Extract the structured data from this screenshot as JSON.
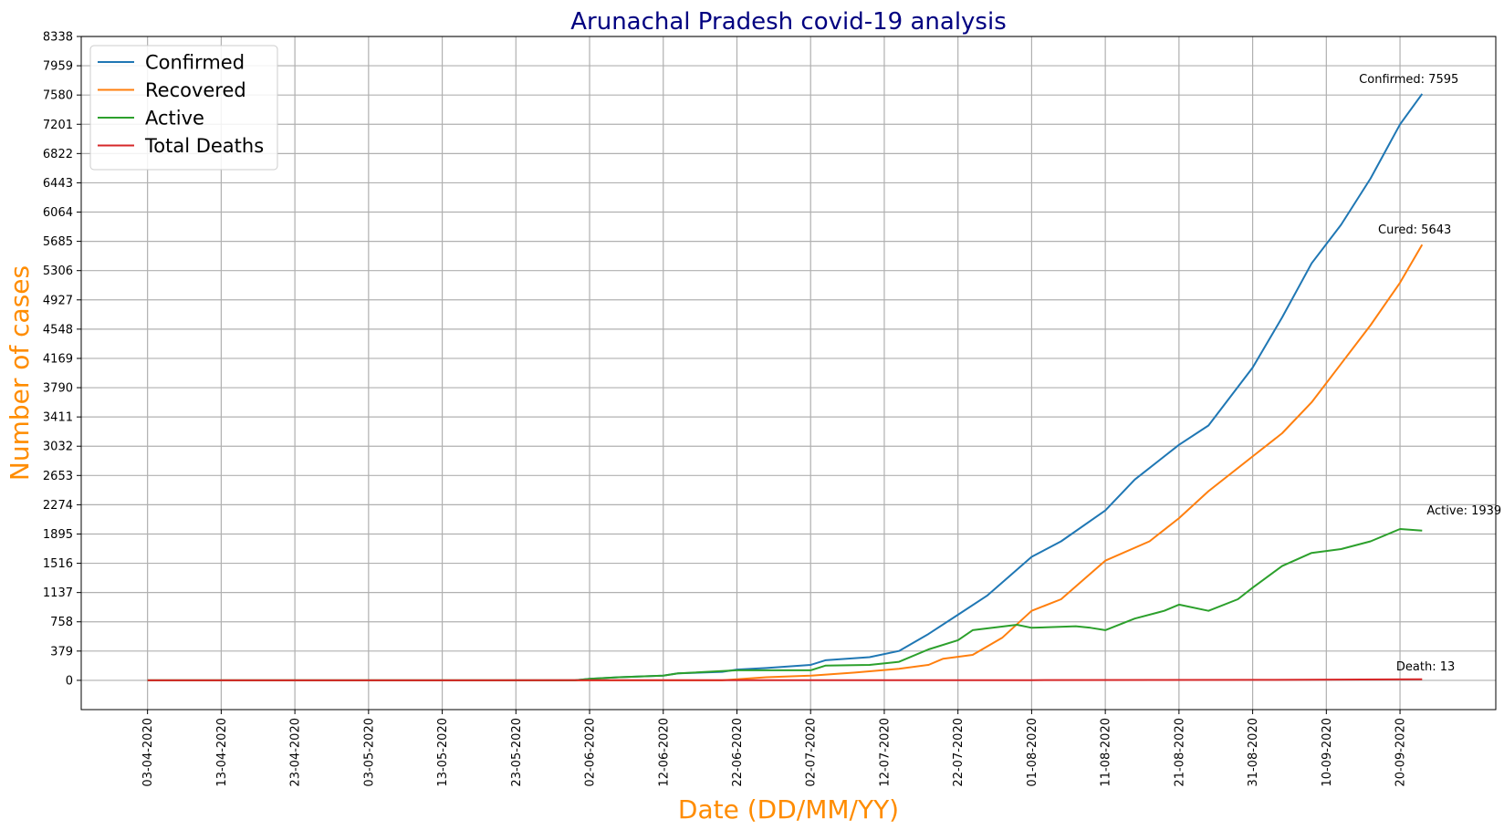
{
  "chart_data": {
    "type": "line",
    "title": "Arunachal Pradesh covid-19 analysis",
    "xlabel": "Date (DD/MM/YY)",
    "ylabel": "Number of cases",
    "x_start": "03-04-2020",
    "x_end": "23-09-2020",
    "xlim": [
      "25-03-2020",
      "03-10-2020"
    ],
    "ylim": [
      -379,
      8338
    ],
    "x_ticks": [
      "03-04-2020",
      "13-04-2020",
      "23-04-2020",
      "03-05-2020",
      "13-05-2020",
      "23-05-2020",
      "02-06-2020",
      "12-06-2020",
      "22-06-2020",
      "02-07-2020",
      "12-07-2020",
      "22-07-2020",
      "01-08-2020",
      "11-08-2020",
      "21-08-2020",
      "31-08-2020",
      "10-09-2020",
      "20-09-2020"
    ],
    "y_ticks": [
      0,
      379,
      758,
      1137,
      1516,
      1895,
      2274,
      2653,
      3032,
      3411,
      3790,
      4169,
      4548,
      4927,
      5306,
      5685,
      6064,
      6443,
      6822,
      7201,
      7580,
      7959,
      8338
    ],
    "grid": true,
    "legend": {
      "position": "top-left"
    },
    "series": [
      {
        "name": "Confirmed",
        "color": "#1f77b4",
        "points": [
          [
            "03-04-2020",
            0
          ],
          [
            "31-05-2020",
            0
          ],
          [
            "02-06-2020",
            20
          ],
          [
            "06-06-2020",
            40
          ],
          [
            "12-06-2020",
            60
          ],
          [
            "14-06-2020",
            90
          ],
          [
            "20-06-2020",
            110
          ],
          [
            "22-06-2020",
            140
          ],
          [
            "26-06-2020",
            160
          ],
          [
            "02-07-2020",
            200
          ],
          [
            "04-07-2020",
            260
          ],
          [
            "10-07-2020",
            300
          ],
          [
            "14-07-2020",
            380
          ],
          [
            "18-07-2020",
            600
          ],
          [
            "22-07-2020",
            850
          ],
          [
            "26-07-2020",
            1100
          ],
          [
            "01-08-2020",
            1600
          ],
          [
            "05-08-2020",
            1800
          ],
          [
            "11-08-2020",
            2200
          ],
          [
            "15-08-2020",
            2600
          ],
          [
            "21-08-2020",
            3050
          ],
          [
            "25-08-2020",
            3300
          ],
          [
            "31-08-2020",
            4050
          ],
          [
            "04-09-2020",
            4700
          ],
          [
            "08-09-2020",
            5400
          ],
          [
            "12-09-2020",
            5900
          ],
          [
            "16-09-2020",
            6500
          ],
          [
            "20-09-2020",
            7200
          ],
          [
            "23-09-2020",
            7595
          ]
        ]
      },
      {
        "name": "Recovered",
        "color": "#ff7f0e",
        "points": [
          [
            "03-04-2020",
            0
          ],
          [
            "20-06-2020",
            0
          ],
          [
            "26-06-2020",
            40
          ],
          [
            "02-07-2020",
            60
          ],
          [
            "08-07-2020",
            100
          ],
          [
            "14-07-2020",
            150
          ],
          [
            "18-07-2020",
            200
          ],
          [
            "20-07-2020",
            280
          ],
          [
            "24-07-2020",
            330
          ],
          [
            "28-07-2020",
            550
          ],
          [
            "01-08-2020",
            900
          ],
          [
            "05-08-2020",
            1050
          ],
          [
            "11-08-2020",
            1550
          ],
          [
            "17-08-2020",
            1800
          ],
          [
            "21-08-2020",
            2100
          ],
          [
            "25-08-2020",
            2450
          ],
          [
            "31-08-2020",
            2900
          ],
          [
            "04-09-2020",
            3200
          ],
          [
            "08-09-2020",
            3600
          ],
          [
            "12-09-2020",
            4100
          ],
          [
            "16-09-2020",
            4600
          ],
          [
            "20-09-2020",
            5150
          ],
          [
            "23-09-2020",
            5643
          ]
        ]
      },
      {
        "name": "Active",
        "color": "#2ca02c",
        "points": [
          [
            "03-04-2020",
            0
          ],
          [
            "31-05-2020",
            0
          ],
          [
            "02-06-2020",
            20
          ],
          [
            "06-06-2020",
            40
          ],
          [
            "12-06-2020",
            60
          ],
          [
            "14-06-2020",
            90
          ],
          [
            "22-06-2020",
            130
          ],
          [
            "02-07-2020",
            130
          ],
          [
            "04-07-2020",
            190
          ],
          [
            "10-07-2020",
            200
          ],
          [
            "14-07-2020",
            240
          ],
          [
            "18-07-2020",
            400
          ],
          [
            "22-07-2020",
            520
          ],
          [
            "24-07-2020",
            650
          ],
          [
            "30-07-2020",
            720
          ],
          [
            "01-08-2020",
            680
          ],
          [
            "07-08-2020",
            700
          ],
          [
            "09-08-2020",
            680
          ],
          [
            "11-08-2020",
            650
          ],
          [
            "15-08-2020",
            800
          ],
          [
            "19-08-2020",
            900
          ],
          [
            "21-08-2020",
            980
          ],
          [
            "25-08-2020",
            900
          ],
          [
            "29-08-2020",
            1050
          ],
          [
            "31-08-2020",
            1200
          ],
          [
            "04-09-2020",
            1480
          ],
          [
            "08-09-2020",
            1650
          ],
          [
            "12-09-2020",
            1700
          ],
          [
            "16-09-2020",
            1800
          ],
          [
            "20-09-2020",
            1960
          ],
          [
            "23-09-2020",
            1939
          ]
        ]
      },
      {
        "name": "Total Deaths",
        "color": "#d62728",
        "points": [
          [
            "03-04-2020",
            0
          ],
          [
            "01-08-2020",
            2
          ],
          [
            "01-09-2020",
            6
          ],
          [
            "23-09-2020",
            13
          ]
        ]
      }
    ],
    "annotations": [
      {
        "text": "Confirmed: 7595",
        "x": "23-09-2020",
        "y": 7595,
        "anchor": "end"
      },
      {
        "text": "Cured: 5643",
        "x": "23-09-2020",
        "y": 5643,
        "anchor": "end"
      },
      {
        "text": "Active: 1939",
        "x": "23-09-2020",
        "y": 1939,
        "anchor": "middle"
      },
      {
        "text": "Death: 13",
        "x": "23-09-2020",
        "y": 13,
        "anchor": "end"
      }
    ]
  }
}
